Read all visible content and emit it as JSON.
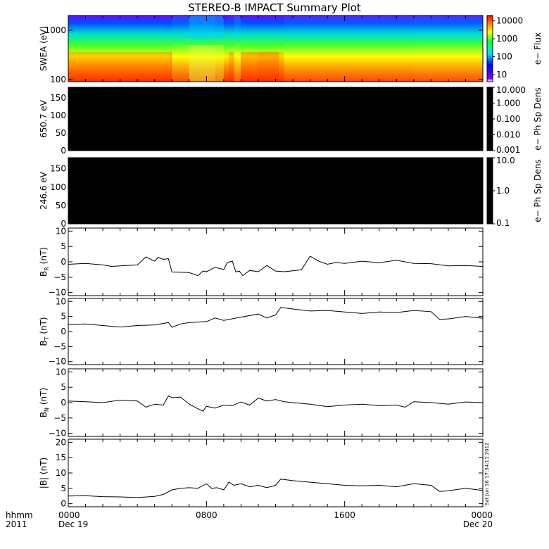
{
  "title": "STEREO-B IMPACT Summary Plot",
  "stamp": "Sat Jun 16 17:34:11 2012",
  "corner": {
    "line1": "hhmm",
    "line2": "2011"
  },
  "x_axis": {
    "ticks": [
      {
        "hour": 0,
        "time": "0000",
        "date": "Dec 19"
      },
      {
        "hour": 8,
        "time": "0800",
        "date": ""
      },
      {
        "hour": 16,
        "time": "1600",
        "date": ""
      },
      {
        "hour": 24,
        "time": "0000",
        "date": "Dec 20"
      }
    ]
  },
  "colors": {
    "trace": "#000000",
    "background": "#ffffff",
    "panel_fill": "#000000"
  },
  "chart_data": [
    {
      "type": "heatmap",
      "id": "swea",
      "ylabel": "SWEA (eV)",
      "yscale": "log",
      "ylim": [
        90,
        2000
      ],
      "yticks": [
        {
          "v": 100,
          "t": "100"
        },
        {
          "v": 1000,
          "t": "1000"
        }
      ],
      "colorbar": {
        "label": "e− Flux",
        "scale": "log",
        "ticks": [
          {
            "v": 10,
            "t": "10"
          },
          {
            "v": 100,
            "t": "100"
          },
          {
            "v": 1000,
            "t": "1000"
          },
          {
            "v": 10000,
            "t": "10000"
          }
        ]
      },
      "profile_hours": [
        0,
        5.9,
        6.0,
        7.0,
        8.5,
        9.0,
        9.3,
        9.6,
        10.0,
        11.0,
        12.2,
        12.5,
        16.0,
        20.0,
        24.0
      ],
      "profile_intensity": [
        0.88,
        0.93,
        0.74,
        0.62,
        0.68,
        0.8,
        0.9,
        0.72,
        0.92,
        0.95,
        0.86,
        0.75,
        0.75,
        0.74,
        0.75
      ]
    },
    {
      "type": "heatmap",
      "id": "pad-650",
      "ylabel": "650.7 eV",
      "ylim": [
        0,
        180
      ],
      "yticks": [
        {
          "v": 0,
          "t": "0"
        },
        {
          "v": 50,
          "t": "50"
        },
        {
          "v": 100,
          "t": "100"
        },
        {
          "v": 150,
          "t": "150"
        }
      ],
      "colorbar": {
        "label": "e− Ph Sp Dens",
        "scale": "log",
        "ticks": [
          {
            "v": 0.001,
            "t": "0.001"
          },
          {
            "v": 0.01,
            "t": "0.010"
          },
          {
            "v": 0.1,
            "t": "0.100"
          },
          {
            "v": 1,
            "t": "1.000"
          },
          {
            "v": 10,
            "t": "10.000"
          }
        ]
      }
    },
    {
      "type": "heatmap",
      "id": "pad-246",
      "ylabel": "246.6 eV",
      "ylim": [
        0,
        180
      ],
      "yticks": [
        {
          "v": 0,
          "t": "0"
        },
        {
          "v": 50,
          "t": "50"
        },
        {
          "v": 100,
          "t": "100"
        },
        {
          "v": 150,
          "t": "150"
        }
      ],
      "colorbar": {
        "label": "e− Ph Sp Dens",
        "scale": "log",
        "ticks": [
          {
            "v": 0.1,
            "t": "0.1"
          },
          {
            "v": 1,
            "t": "1.0"
          },
          {
            "v": 10,
            "t": "10.0"
          }
        ]
      }
    },
    {
      "type": "line",
      "id": "br",
      "ylabel": "B",
      "ylabel_sub": "R",
      "ylabel_unit": "(nT)",
      "ylim": [
        -11,
        11
      ],
      "yticks": [
        {
          "v": -10,
          "t": "−10"
        },
        {
          "v": -5,
          "t": "−5"
        },
        {
          "v": 0,
          "t": "0"
        },
        {
          "v": 5,
          "t": "5"
        },
        {
          "v": 10,
          "t": "10"
        }
      ],
      "x": [
        0,
        1,
        2,
        2.5,
        3,
        4,
        4.5,
        5,
        5.2,
        5.5,
        5.8,
        6.0,
        6.5,
        7,
        7.5,
        7.8,
        8,
        8.5,
        9,
        9.2,
        9.5,
        9.7,
        9.9,
        10.1,
        10.5,
        11,
        11.5,
        12,
        12.5,
        13,
        13.5,
        14,
        14.5,
        15,
        15.5,
        16,
        17,
        18,
        19,
        20,
        21,
        22,
        23,
        24
      ],
      "values": [
        -0.8,
        -0.5,
        -1.0,
        -1.5,
        -1.3,
        -1.0,
        1.6,
        0.2,
        1.5,
        0.8,
        1.0,
        -3.3,
        -3.4,
        -3.5,
        -4.5,
        -3.0,
        -3.2,
        -1.8,
        -2.5,
        -0.2,
        0.2,
        -3.3,
        -3.0,
        -4.5,
        -2.8,
        -3.2,
        -1.2,
        -3.0,
        -3.2,
        -2.9,
        -2.6,
        1.8,
        0.2,
        -0.8,
        -0.2,
        -0.5,
        0.2,
        -0.3,
        0.5,
        -0.5,
        -0.6,
        -1.3,
        -1.2,
        -1.5
      ]
    },
    {
      "type": "line",
      "id": "bt",
      "ylabel": "B",
      "ylabel_sub": "T",
      "ylabel_unit": "(nT)",
      "ylim": [
        -11,
        11
      ],
      "yticks": [
        {
          "v": -10,
          "t": "−10"
        },
        {
          "v": -5,
          "t": "−5"
        },
        {
          "v": 0,
          "t": "0"
        },
        {
          "v": 5,
          "t": "5"
        },
        {
          "v": 10,
          "t": "10"
        }
      ],
      "x": [
        0,
        1,
        2,
        3,
        4,
        5,
        5.8,
        6.0,
        6.5,
        7,
        8,
        8.5,
        9,
        10,
        11,
        11.5,
        12,
        12.3,
        13,
        14,
        15,
        16,
        17,
        18,
        19,
        20,
        21,
        21.5,
        22,
        23,
        24
      ],
      "values": [
        2.3,
        2.5,
        2.0,
        1.5,
        2.0,
        2.2,
        3.0,
        1.4,
        2.5,
        3.0,
        3.3,
        4.5,
        3.7,
        4.8,
        5.8,
        4.5,
        5.5,
        8.0,
        7.5,
        6.8,
        7.0,
        6.5,
        6.0,
        6.5,
        6.3,
        7.0,
        6.6,
        4.0,
        4.2,
        5.0,
        4.4
      ]
    },
    {
      "type": "line",
      "id": "bn",
      "ylabel": "B",
      "ylabel_sub": "N",
      "ylabel_unit": "(nT)",
      "ylim": [
        -11,
        11
      ],
      "yticks": [
        {
          "v": -10,
          "t": "−10"
        },
        {
          "v": -5,
          "t": "−5"
        },
        {
          "v": 0,
          "t": "0"
        },
        {
          "v": 5,
          "t": "5"
        },
        {
          "v": 10,
          "t": "10"
        }
      ],
      "x": [
        0,
        1,
        2,
        3,
        4,
        4.5,
        5,
        5.5,
        5.8,
        6.0,
        6.5,
        7,
        7.5,
        7.8,
        8,
        8.5,
        9,
        9.5,
        10,
        10.5,
        11,
        11.5,
        12,
        12.5,
        13,
        14,
        15,
        16,
        17,
        18,
        19,
        19.5,
        20,
        21,
        22,
        23,
        24
      ],
      "values": [
        0.5,
        0.3,
        0.0,
        0.8,
        0.5,
        -1.5,
        -0.5,
        -0.8,
        2.2,
        1.6,
        1.8,
        -0.5,
        -2.0,
        -2.8,
        -1.2,
        -1.8,
        -0.8,
        -1.0,
        0.2,
        -0.8,
        1.5,
        0.5,
        1.0,
        0.3,
        0.0,
        -0.5,
        -1.3,
        -0.8,
        -0.5,
        -1.0,
        -0.8,
        -1.5,
        0.3,
        0.0,
        -0.5,
        0.2,
        0.0
      ]
    },
    {
      "type": "line",
      "id": "bmag",
      "ylabel": "|B|",
      "ylabel_unit": "(nT)",
      "ylim": [
        -1,
        21
      ],
      "yticks": [
        {
          "v": 0,
          "t": "0"
        },
        {
          "v": 5,
          "t": "5"
        },
        {
          "v": 10,
          "t": "10"
        },
        {
          "v": 15,
          "t": "15"
        },
        {
          "v": 20,
          "t": "20"
        }
      ],
      "x": [
        0,
        1,
        2,
        3,
        4,
        5,
        5.5,
        6,
        6.5,
        7,
        7.5,
        8,
        8.3,
        8.6,
        9,
        9.3,
        9.6,
        10,
        10.5,
        11,
        11.5,
        12,
        12.3,
        13,
        14,
        15,
        16,
        17,
        18,
        19,
        20,
        21,
        21.5,
        22,
        23,
        24
      ],
      "values": [
        2.5,
        2.6,
        2.3,
        2.2,
        2.0,
        2.4,
        3.0,
        4.5,
        5.0,
        5.2,
        5.0,
        6.5,
        5.0,
        5.2,
        4.5,
        7.0,
        6.0,
        6.5,
        5.5,
        6.0,
        5.2,
        6.0,
        8.0,
        7.5,
        7.0,
        6.5,
        6.0,
        5.8,
        6.0,
        5.5,
        6.5,
        6.0,
        4.0,
        4.2,
        5.0,
        4.3
      ]
    }
  ]
}
